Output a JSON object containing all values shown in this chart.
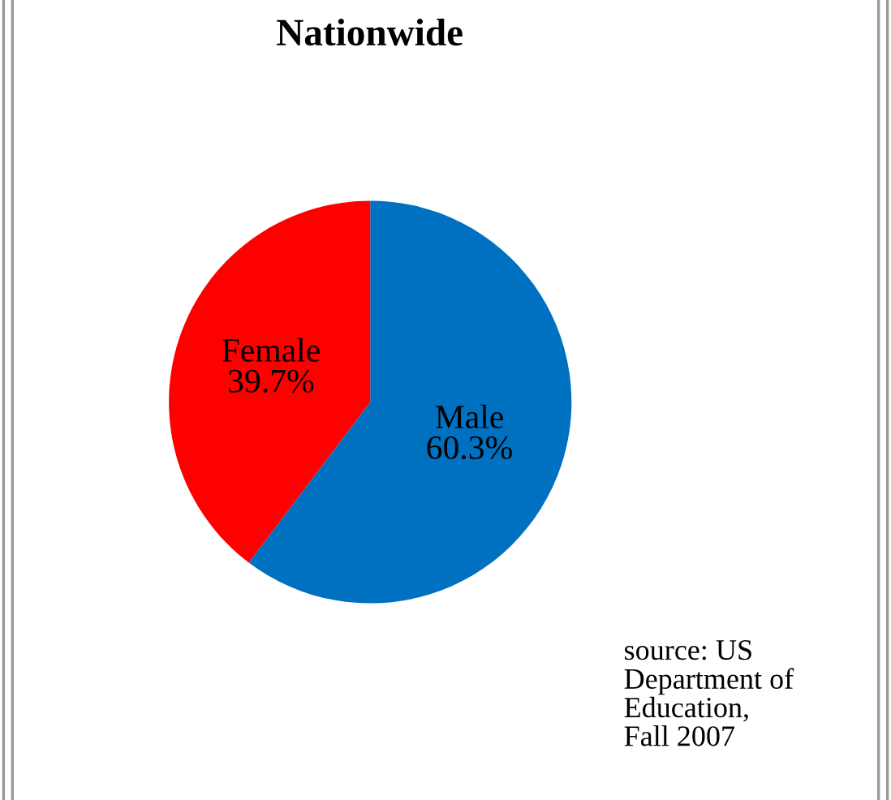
{
  "chart_data": {
    "type": "pie",
    "title": "Nationwide",
    "categories": [
      "Male",
      "Female"
    ],
    "values": [
      60.3,
      39.7
    ],
    "value_labels": [
      "60.3%",
      "39.7%"
    ],
    "colors": [
      "#0070c0",
      "#ff0000"
    ],
    "legend": false,
    "annotations": [
      "source: US\nDepartment of\nEducation,\nFall 2007"
    ]
  }
}
